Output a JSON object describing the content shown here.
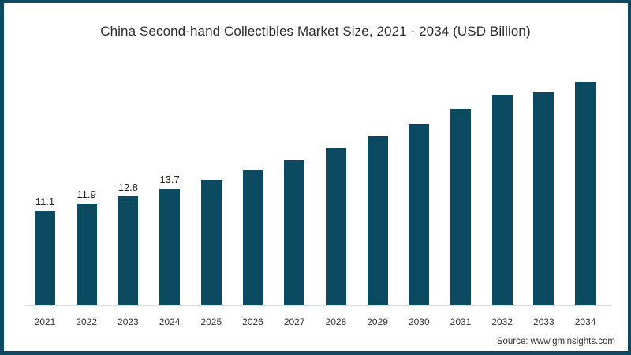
{
  "colors": {
    "bar": "#0b4a61",
    "frame": "#0b4a61",
    "background": "#ffffff"
  },
  "chart_data": {
    "type": "bar",
    "title": "China Second-hand Collectibles Market Size, 2021 - 2034 (USD Billion)",
    "xlabel": "",
    "ylabel": "",
    "categories": [
      "2021",
      "2022",
      "2023",
      "2024",
      "2025",
      "2026",
      "2027",
      "2028",
      "2029",
      "2030",
      "2031",
      "2032",
      "2033",
      "2034"
    ],
    "values": [
      11.1,
      11.9,
      12.8,
      13.7,
      14.7,
      15.9,
      17.0,
      18.4,
      19.8,
      21.3,
      23.0,
      24.7,
      25.0,
      26.2
    ],
    "data_labels": [
      "11.1",
      "11.9",
      "12.8",
      "13.7",
      "",
      "",
      "",
      "",
      "",
      "",
      "",
      "",
      "",
      ""
    ],
    "ylim": [
      0,
      30
    ],
    "grid": false,
    "legend": null
  },
  "source": "Source: www.gminsights.com"
}
